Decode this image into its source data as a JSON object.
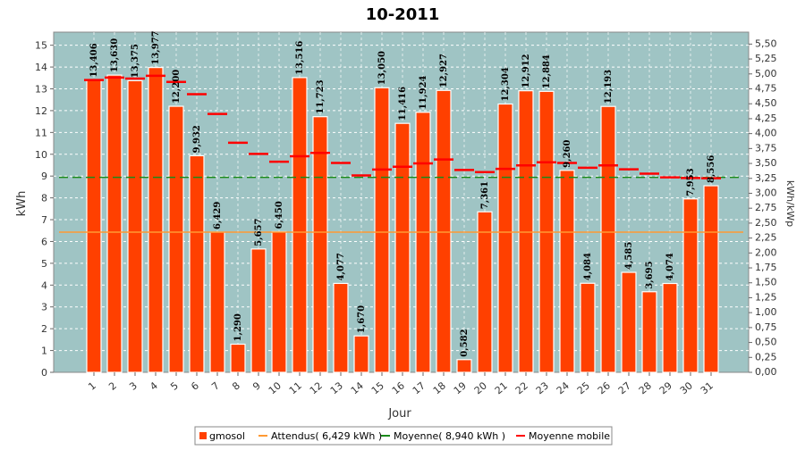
{
  "colors": {
    "plot_bg": "#9fc4c4",
    "bar_fill": "#ff4000",
    "bar_edge": "#ffffff",
    "expected": "#ff9933",
    "average": "#1a8a1a",
    "moving_avg": "#ff0000",
    "grid": "#ffffff"
  },
  "chart_data": {
    "type": "bar",
    "title": "10-2011",
    "xlabel": "Jour",
    "ylabel": "kWh",
    "y2label": "kWh/kWp",
    "ylim": [
      0,
      15.6
    ],
    "y2lim": [
      0,
      5.7
    ],
    "yticks": [
      "0",
      "1",
      "2",
      "3",
      "4",
      "5",
      "6",
      "7",
      "8",
      "9",
      "10",
      "11",
      "12",
      "13",
      "14",
      "15"
    ],
    "y2ticks": [
      "0,00",
      "0,25",
      "0,50",
      "0,75",
      "1,00",
      "1,25",
      "1,50",
      "1,75",
      "2,00",
      "2,25",
      "2,50",
      "2,75",
      "3,00",
      "3,25",
      "3,50",
      "3,75",
      "4,00",
      "4,25",
      "4,50",
      "4,75",
      "5,00",
      "5,25",
      "5,50"
    ],
    "categories": [
      "1",
      "2",
      "3",
      "4",
      "5",
      "6",
      "7",
      "8",
      "9",
      "10",
      "11",
      "12",
      "13",
      "14",
      "15",
      "16",
      "17",
      "18",
      "19",
      "20",
      "21",
      "22",
      "23",
      "24",
      "25",
      "26",
      "27",
      "28",
      "29",
      "30",
      "31"
    ],
    "values": [
      13.406,
      13.63,
      13.375,
      13.977,
      12.2,
      9.932,
      6.429,
      1.29,
      5.657,
      6.45,
      13.516,
      11.723,
      4.077,
      1.67,
      13.05,
      11.416,
      11.924,
      12.927,
      0.582,
      7.361,
      12.304,
      12.912,
      12.884,
      9.26,
      4.084,
      12.193,
      4.585,
      3.695,
      4.074,
      7.953,
      8.556
    ],
    "value_labels": [
      "13,406",
      "13,630",
      "13,375",
      "13,977",
      "12,200",
      "9,932",
      "6,429",
      "1,290",
      "5,657",
      "6,450",
      "13,516",
      "11,723",
      "4,077",
      "1,670",
      "13,050",
      "11,416",
      "11,924",
      "12,927",
      "0,582",
      "7,361",
      "12,304",
      "12,912",
      "12,884",
      "9,260",
      "4,084",
      "12,193",
      "4,585",
      "3,695",
      "4,074",
      "7,953",
      "8,556"
    ],
    "expected_value": 6.429,
    "average_value": 8.94,
    "moving_average": [
      13.406,
      13.518,
      13.47,
      13.597,
      13.318,
      12.753,
      11.849,
      10.529,
      10.016,
      9.66,
      9.91,
      10.06,
      9.6,
      9.03,
      9.3,
      9.43,
      9.58,
      9.76,
      9.28,
      9.18,
      9.33,
      9.49,
      9.63,
      9.6,
      9.38,
      9.49,
      9.31,
      9.11,
      8.94,
      8.91,
      8.9
    ],
    "series": [
      {
        "name": "gmosol"
      },
      {
        "name": "Attendus( 6,429 kWh )"
      },
      {
        "name": "Moyenne( 8,940 kWh )"
      },
      {
        "name": "Moyenne mobile"
      }
    ],
    "legend_position": "bottom-center",
    "grid": true
  }
}
